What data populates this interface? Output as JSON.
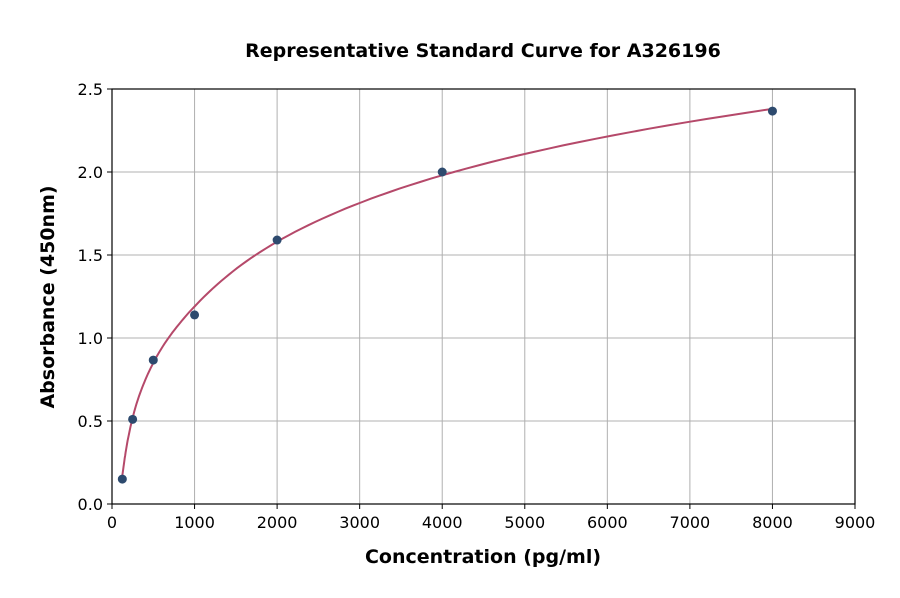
{
  "chart_data": {
    "type": "scatter",
    "title": "Representative Standard Curve for A326196",
    "xlabel": "Concentration (pg/ml)",
    "ylabel": "Absorbance (450nm)",
    "xlim": [
      0,
      9000
    ],
    "ylim": [
      0,
      2.5
    ],
    "xticks": [
      0,
      1000,
      2000,
      3000,
      4000,
      5000,
      6000,
      7000,
      8000,
      9000
    ],
    "yticks": [
      "0.0",
      "0.5",
      "1.0",
      "1.5",
      "2.0",
      "2.5"
    ],
    "grid": true,
    "points": {
      "x": [
        125,
        250,
        500,
        1000,
        2000,
        4000,
        8000
      ],
      "y": [
        0.15,
        0.51,
        0.867,
        1.139,
        1.59,
        2.0,
        2.367
      ],
      "color": "#2d4a6e"
    },
    "fit_curve": {
      "x": [
        125,
        250,
        500,
        1000,
        2000,
        4000,
        8000
      ],
      "y": [
        0.17,
        0.52,
        0.85,
        1.19,
        1.58,
        1.98,
        2.38
      ],
      "color": "#b5496a"
    }
  }
}
